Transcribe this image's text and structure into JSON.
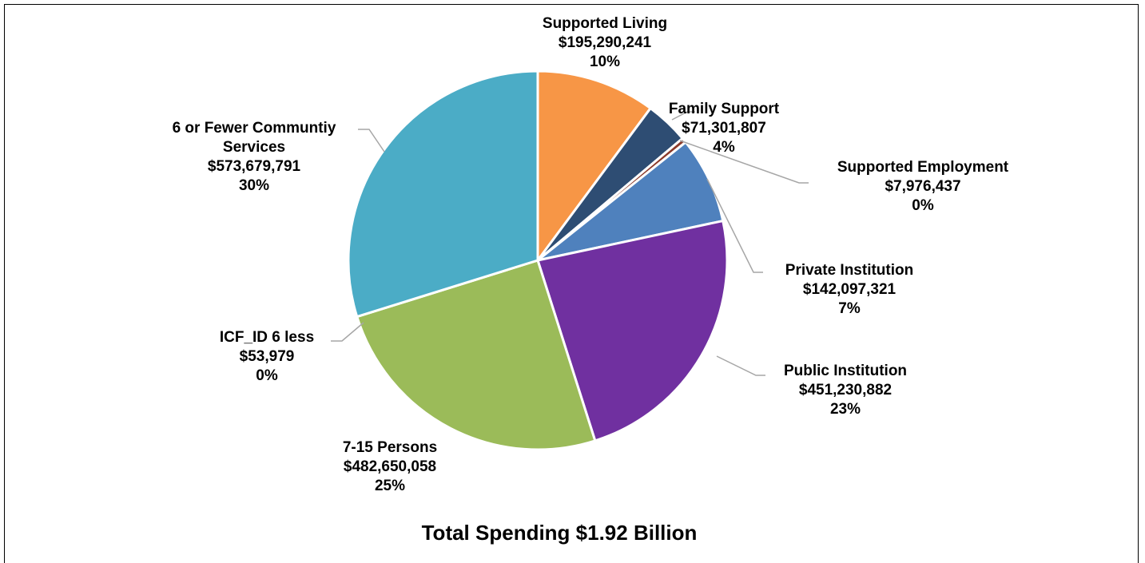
{
  "chart_data": {
    "type": "pie",
    "title": "Total Spending $1.92 Billion",
    "slices": [
      {
        "label_lines": [
          "Supported Living"
        ],
        "amount": "$195,290,241",
        "percent": "10%",
        "value": 195290241,
        "color": "#F79646"
      },
      {
        "label_lines": [
          "Family Support"
        ],
        "amount": "$71,301,807",
        "percent": "4%",
        "value": 71301807,
        "color": "#2E4D73"
      },
      {
        "label_lines": [
          "Supported Employment"
        ],
        "amount": "$7,976,437",
        "percent": "0%",
        "value": 7976437,
        "color": "#8B3A2A"
      },
      {
        "label_lines": [
          "Private Institution"
        ],
        "amount": "$142,097,321",
        "percent": "7%",
        "value": 142097321,
        "color": "#4F81BD"
      },
      {
        "label_lines": [
          "Public Institution"
        ],
        "amount": "$451,230,882",
        "percent": "23%",
        "value": 451230882,
        "color": "#7030A0"
      },
      {
        "label_lines": [
          "7-15 Persons"
        ],
        "amount": "$482,650,058",
        "percent": "25%",
        "value": 482650058,
        "color": "#9BBB59"
      },
      {
        "label_lines": [
          "ICF_ID 6 less"
        ],
        "amount": "$53,979",
        "percent": "0%",
        "value": 53979,
        "color": "#C0504D"
      },
      {
        "label_lines": [
          "6 or Fewer Communtiy",
          "Services"
        ],
        "amount": "$573,679,791",
        "percent": "30%",
        "value": 573679791,
        "color": "#4BACC6"
      }
    ]
  }
}
